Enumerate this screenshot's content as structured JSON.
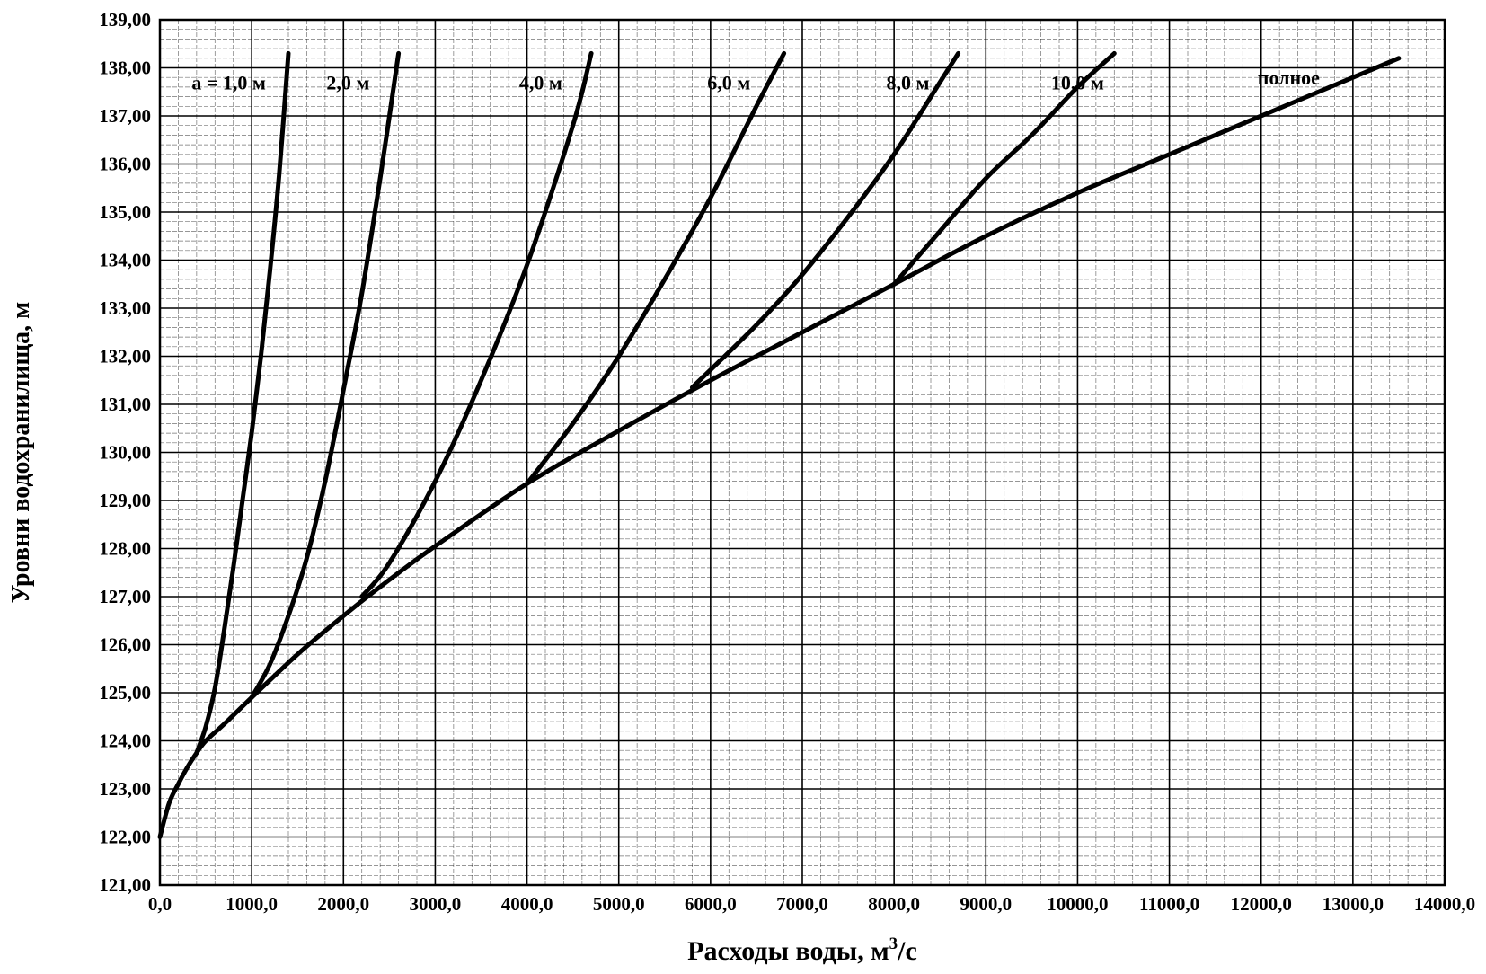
{
  "chart_data": {
    "type": "line",
    "title": "",
    "xlabel": "Расходы воды, м",
    "xlabel_sup": "3",
    "xlabel_suffix": "/с",
    "ylabel": "Уровни водохранилища, м",
    "xlim": [
      0,
      14000
    ],
    "ylim": [
      121,
      139
    ],
    "grid": true,
    "x_ticks": [
      0,
      1000,
      2000,
      3000,
      4000,
      5000,
      6000,
      7000,
      8000,
      9000,
      10000,
      11000,
      12000,
      13000,
      14000
    ],
    "x_tick_labels": [
      "0,0",
      "1000,0",
      "2000,0",
      "3000,0",
      "4000,0",
      "5000,0",
      "6000,0",
      "7000,0",
      "8000,0",
      "9000,0",
      "10000,0",
      "11000,0",
      "12000,0",
      "13000,0",
      "14000,0"
    ],
    "y_ticks": [
      121,
      122,
      123,
      124,
      125,
      126,
      127,
      128,
      129,
      130,
      131,
      132,
      133,
      134,
      135,
      136,
      137,
      138,
      139
    ],
    "y_tick_labels": [
      "121,00",
      "122,00",
      "123,00",
      "124,00",
      "125,00",
      "126,00",
      "127,00",
      "128,00",
      "129,00",
      "130,00",
      "131,00",
      "132,00",
      "133,00",
      "134,00",
      "135,00",
      "136,00",
      "137,00",
      "138,00",
      "139,00"
    ],
    "series": [
      {
        "name": "полное",
        "label": "полное",
        "x": [
          0,
          100,
          200,
          300,
          400,
          500,
          700,
          1000,
          1500,
          2000,
          2500,
          3000,
          4000,
          5000,
          6000,
          7000,
          8000,
          9000,
          10000,
          11000,
          12000,
          13000,
          13500
        ],
        "y": [
          122.0,
          122.7,
          123.1,
          123.45,
          123.75,
          124.0,
          124.35,
          124.9,
          125.8,
          126.6,
          127.35,
          128.05,
          129.35,
          130.45,
          131.5,
          132.5,
          133.5,
          134.5,
          135.4,
          136.2,
          137.0,
          137.8,
          138.2
        ]
      },
      {
        "name": "а = 1,0 м",
        "label": "а = 1,0 м",
        "x": [
          400,
          500,
          600,
          700,
          800,
          900,
          1000,
          1100,
          1200,
          1300,
          1400
        ],
        "y": [
          123.75,
          124.3,
          125.1,
          126.3,
          127.6,
          129.0,
          130.4,
          132.0,
          133.8,
          135.8,
          138.3
        ]
      },
      {
        "name": "2,0 м",
        "label": "2,0 м",
        "x": [
          1000,
          1200,
          1400,
          1600,
          1800,
          2000,
          2200,
          2400,
          2600
        ],
        "y": [
          124.9,
          125.6,
          126.6,
          127.8,
          129.4,
          131.3,
          133.3,
          135.7,
          138.3
        ]
      },
      {
        "name": "4,0 м",
        "label": "4,0 м",
        "x": [
          2200,
          2500,
          3000,
          3500,
          4000,
          4500,
          4700
        ],
        "y": [
          127.0,
          127.7,
          129.4,
          131.5,
          133.9,
          136.8,
          138.3
        ]
      },
      {
        "name": "6,0 м",
        "label": "6,0 м",
        "x": [
          4000,
          4500,
          5000,
          5500,
          6000,
          6500,
          6800
        ],
        "y": [
          129.35,
          130.6,
          132.0,
          133.6,
          135.3,
          137.2,
          138.3
        ]
      },
      {
        "name": "8,0 м",
        "label": "8,0 м",
        "x": [
          5800,
          6500,
          7000,
          7500,
          8000,
          8500,
          8700
        ],
        "y": [
          131.35,
          132.65,
          133.7,
          134.9,
          136.2,
          137.7,
          138.3
        ]
      },
      {
        "name": "10,0 м",
        "label": "10,0 м",
        "x": [
          8000,
          8500,
          9000,
          9500,
          10000,
          10400
        ],
        "y": [
          133.5,
          134.6,
          135.7,
          136.6,
          137.6,
          138.3
        ]
      }
    ],
    "curve_labels": [
      {
        "text": "а = 1,0 м",
        "x": 750,
        "y": 137.55
      },
      {
        "text": "2,0 м",
        "x": 2050,
        "y": 137.55
      },
      {
        "text": "4,0 м",
        "x": 4150,
        "y": 137.55
      },
      {
        "text": "6,0 м",
        "x": 6200,
        "y": 137.55
      },
      {
        "text": "8,0 м",
        "x": 8150,
        "y": 137.55
      },
      {
        "text": "10,0 м",
        "x": 10000,
        "y": 137.55
      },
      {
        "text": "полное",
        "x": 12300,
        "y": 137.65
      }
    ]
  }
}
